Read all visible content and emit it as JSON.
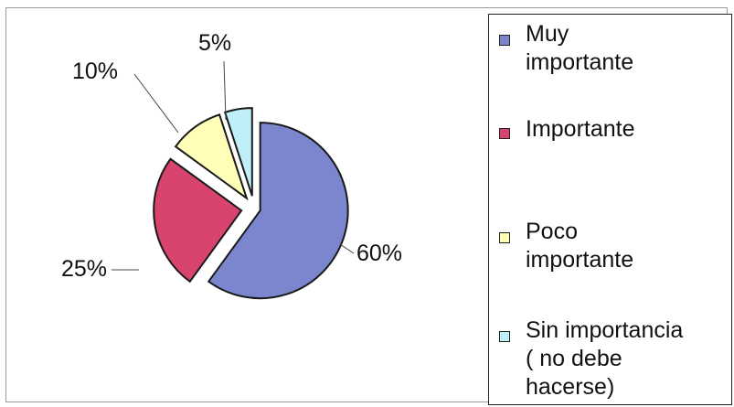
{
  "chart_data": {
    "type": "pie",
    "title": "",
    "legend_position": "right",
    "slices": [
      {
        "label": "Muy importante",
        "value": 60,
        "data_label": "60%",
        "color": "#7b86cf"
      },
      {
        "label": "Importante",
        "value": 25,
        "data_label": "25%",
        "color": "#d9446f"
      },
      {
        "label": "Poco importante",
        "value": 10,
        "data_label": "10%",
        "color": "#ffffb8"
      },
      {
        "label": "Sin importancia ( no debe hacerse)",
        "value": 5,
        "data_label": "5%",
        "color": "#bfeff8"
      }
    ]
  },
  "legend": {
    "items": [
      {
        "text": "  Muy\nimportante"
      },
      {
        "text": "Importante"
      },
      {
        "text": "Poco\nimportante"
      },
      {
        "text": "Sin importancia\n( no debe\nhacerse)"
      }
    ]
  }
}
